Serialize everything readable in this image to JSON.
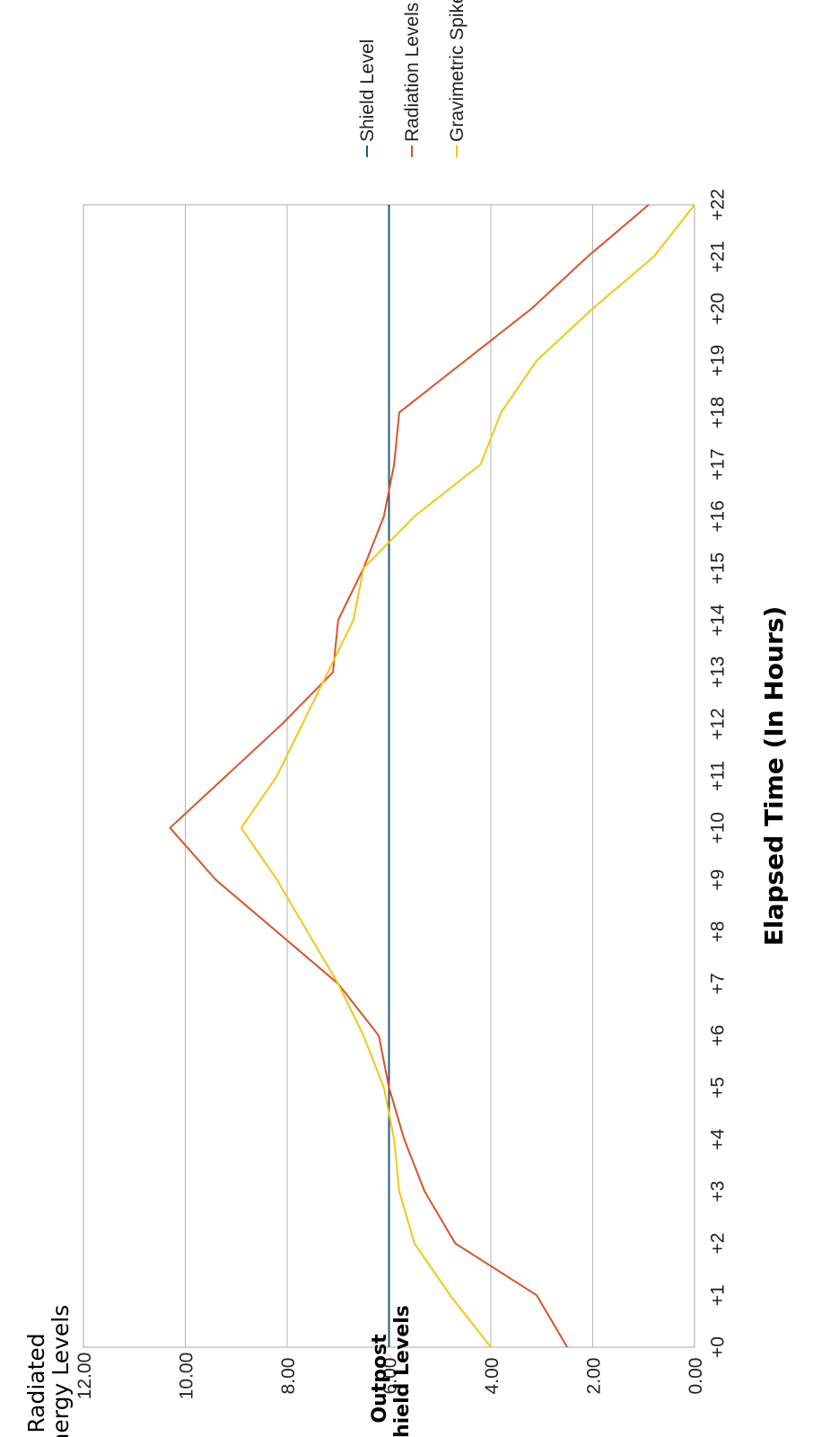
{
  "chart_data": {
    "type": "line",
    "title_line1": "Radiated",
    "title_line2": "Energy Levels",
    "ylabel_line1": "Outpost",
    "ylabel_line2": "Shield Levels",
    "xlabel": "Elapsed Time (In Hours)",
    "categories": [
      "+0",
      "+1",
      "+2",
      "+3",
      "+4",
      "+5",
      "+6",
      "+7",
      "+8",
      "+9",
      "+10",
      "+11",
      "+12",
      "+13",
      "+14",
      "+15",
      "+16",
      "+17",
      "+18",
      "+19",
      "+20",
      "+21",
      "+22"
    ],
    "ylim": [
      0,
      12
    ],
    "y_ticks": [
      "0.00",
      "2.00",
      "4.00",
      "6.00",
      "8.00",
      "10.00",
      "12.00"
    ],
    "grid": true,
    "legend_position": "right",
    "series": [
      {
        "name": "Shield Level",
        "color": "#1f5c7a",
        "values": [
          6,
          6,
          6,
          6,
          6,
          6,
          6,
          6,
          6,
          6,
          6,
          6,
          6,
          6,
          6,
          6,
          6,
          6,
          6,
          6,
          6,
          6,
          6
        ]
      },
      {
        "name": "Radiation Levels",
        "color": "#d9532b",
        "values": [
          2.5,
          3.1,
          4.7,
          5.3,
          5.7,
          6.0,
          6.2,
          7.0,
          8.2,
          9.4,
          10.3,
          9.2,
          8.1,
          7.1,
          7.0,
          6.5,
          6.1,
          5.9,
          5.8,
          4.5,
          3.2,
          2.1,
          0.9
        ]
      },
      {
        "name": "Gravimetric Spikes",
        "color": "#f5c518",
        "values": [
          4.0,
          4.8,
          5.5,
          5.8,
          5.9,
          6.1,
          6.5,
          7.0,
          7.6,
          8.2,
          8.9,
          8.2,
          7.7,
          7.2,
          6.7,
          6.5,
          5.5,
          4.2,
          3.8,
          3.1,
          2.0,
          0.8,
          0.0
        ]
      }
    ]
  }
}
